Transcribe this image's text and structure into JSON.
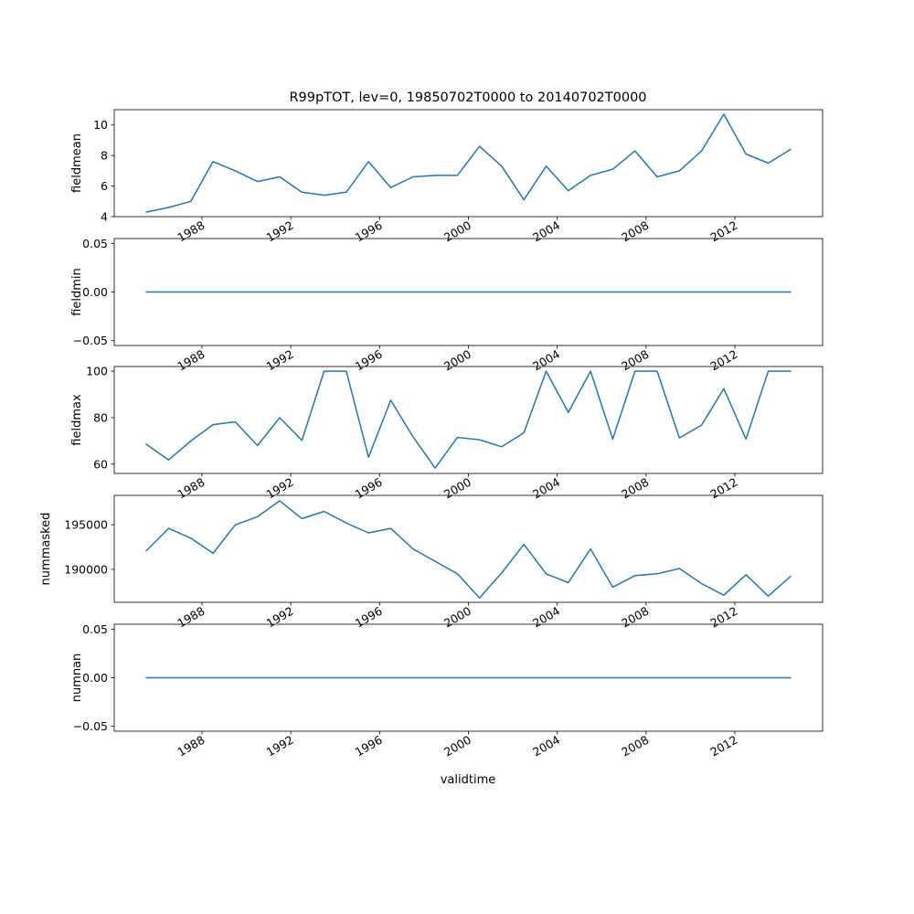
{
  "figure": {
    "title": "R99pTOT, lev=0, 19850702T0000 to 20140702T0000",
    "xlabel": "validtime"
  },
  "chart_data": [
    {
      "type": "line",
      "ylabel": "fieldmean",
      "x": [
        1985.5,
        1986.5,
        1987.5,
        1988.5,
        1989.5,
        1990.5,
        1991.5,
        1992.5,
        1993.5,
        1994.5,
        1995.5,
        1996.5,
        1997.5,
        1998.5,
        1999.5,
        2000.5,
        2001.5,
        2002.5,
        2003.5,
        2004.5,
        2005.5,
        2006.5,
        2007.5,
        2008.5,
        2009.5,
        2010.5,
        2011.5,
        2012.5,
        2013.5,
        2014.5
      ],
      "values": [
        4.3,
        4.6,
        5.0,
        7.6,
        7.0,
        6.3,
        6.6,
        5.6,
        5.4,
        5.6,
        7.6,
        5.9,
        6.6,
        6.7,
        6.7,
        8.6,
        7.3,
        5.1,
        7.3,
        5.7,
        6.7,
        7.1,
        8.3,
        6.6,
        7.0,
        8.3,
        10.7,
        8.1,
        7.5,
        8.4
      ],
      "ylim": [
        4,
        11
      ],
      "yticks": [
        "4",
        "6",
        "8",
        "10"
      ],
      "ytick_values": [
        4,
        6,
        8,
        10
      ],
      "color": "#1f77b4"
    },
    {
      "type": "line",
      "ylabel": "fieldmin",
      "x": [
        1985.5,
        1986.5,
        1987.5,
        1988.5,
        1989.5,
        1990.5,
        1991.5,
        1992.5,
        1993.5,
        1994.5,
        1995.5,
        1996.5,
        1997.5,
        1998.5,
        1999.5,
        2000.5,
        2001.5,
        2002.5,
        2003.5,
        2004.5,
        2005.5,
        2006.5,
        2007.5,
        2008.5,
        2009.5,
        2010.5,
        2011.5,
        2012.5,
        2013.5,
        2014.5
      ],
      "values": [
        0,
        0,
        0,
        0,
        0,
        0,
        0,
        0,
        0,
        0,
        0,
        0,
        0,
        0,
        0,
        0,
        0,
        0,
        0,
        0,
        0,
        0,
        0,
        0,
        0,
        0,
        0,
        0,
        0,
        0
      ],
      "ylim": [
        -0.055,
        0.055
      ],
      "yticks": [
        "−0.05",
        "0.00",
        "0.05"
      ],
      "ytick_values": [
        -0.05,
        0,
        0.05
      ],
      "color": "#1f77b4"
    },
    {
      "type": "line",
      "ylabel": "fieldmax",
      "x": [
        1985.5,
        1986.5,
        1987.5,
        1988.5,
        1989.5,
        1990.5,
        1991.5,
        1992.5,
        1993.5,
        1994.5,
        1995.5,
        1996.5,
        1997.5,
        1998.5,
        1999.5,
        2000.5,
        2001.5,
        2002.5,
        2003.5,
        2004.5,
        2005.5,
        2006.5,
        2007.5,
        2008.5,
        2009.5,
        2010.5,
        2011.5,
        2012.5,
        2013.5,
        2014.5
      ],
      "values": [
        68.5,
        61.8,
        70.0,
        77.0,
        78.2,
        68.0,
        80.0,
        70.2,
        100,
        100,
        63.0,
        87.5,
        71.8,
        58.3,
        71.5,
        70.5,
        67.5,
        73.5,
        100,
        82.3,
        100,
        70.8,
        100,
        100,
        71.3,
        76.8,
        92.5,
        70.8,
        100,
        100
      ],
      "ylim": [
        56,
        102
      ],
      "yticks": [
        "60",
        "80",
        "100"
      ],
      "ytick_values": [
        60,
        80,
        100
      ],
      "color": "#1f77b4"
    },
    {
      "type": "line",
      "ylabel": "nummasked",
      "x": [
        1985.5,
        1986.5,
        1987.5,
        1988.5,
        1989.5,
        1990.5,
        1991.5,
        1992.5,
        1993.5,
        1994.5,
        1995.5,
        1996.5,
        1997.5,
        1998.5,
        1999.5,
        2000.5,
        2001.5,
        2002.5,
        2003.5,
        2004.5,
        2005.5,
        2006.5,
        2007.5,
        2008.5,
        2009.5,
        2010.5,
        2011.5,
        2012.5,
        2013.5,
        2014.5
      ],
      "values": [
        192100,
        194600,
        193500,
        191800,
        195000,
        195900,
        197700,
        195700,
        196500,
        195200,
        194100,
        194600,
        192300,
        190900,
        189500,
        186800,
        189600,
        192800,
        189500,
        188500,
        192300,
        188000,
        189300,
        189500,
        190100,
        188400,
        187100,
        189400,
        187000,
        189200
      ],
      "ylim": [
        186300,
        198300
      ],
      "yticks": [
        "190000",
        "195000"
      ],
      "ytick_values": [
        190000,
        195000
      ],
      "color": "#1f77b4"
    },
    {
      "type": "line",
      "ylabel": "numnan",
      "x": [
        1985.5,
        1986.5,
        1987.5,
        1988.5,
        1989.5,
        1990.5,
        1991.5,
        1992.5,
        1993.5,
        1994.5,
        1995.5,
        1996.5,
        1997.5,
        1998.5,
        1999.5,
        2000.5,
        2001.5,
        2002.5,
        2003.5,
        2004.5,
        2005.5,
        2006.5,
        2007.5,
        2008.5,
        2009.5,
        2010.5,
        2011.5,
        2012.5,
        2013.5,
        2014.5
      ],
      "values": [
        0,
        0,
        0,
        0,
        0,
        0,
        0,
        0,
        0,
        0,
        0,
        0,
        0,
        0,
        0,
        0,
        0,
        0,
        0,
        0,
        0,
        0,
        0,
        0,
        0,
        0,
        0,
        0,
        0,
        0
      ],
      "ylim": [
        -0.055,
        0.055
      ],
      "yticks": [
        "−0.05",
        "0.00",
        "0.05"
      ],
      "ytick_values": [
        -0.05,
        0,
        0.05
      ],
      "color": "#1f77b4"
    }
  ],
  "xaxis": {
    "ticks": [
      "1988",
      "1992",
      "1996",
      "2000",
      "2004",
      "2008",
      "2012"
    ],
    "tick_values": [
      1988,
      1992,
      1996,
      2000,
      2004,
      2008,
      2012
    ],
    "xlim": [
      1984.05,
      2015.95
    ]
  }
}
